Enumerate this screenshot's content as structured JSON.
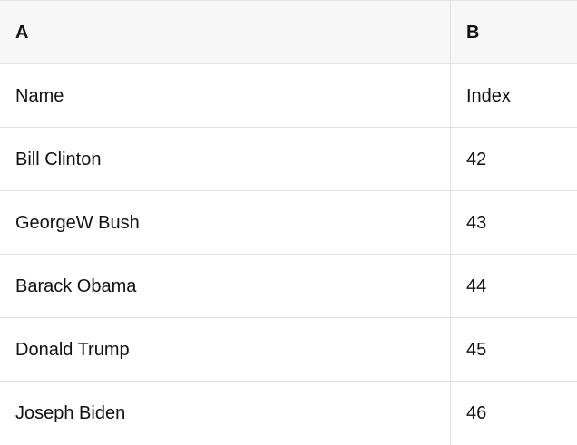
{
  "table": {
    "columns": {
      "a": "A",
      "b": "B"
    },
    "rows": [
      {
        "a": "Name",
        "b": "Index"
      },
      {
        "a": "Bill Clinton",
        "b": "42"
      },
      {
        "a": "GeorgeW Bush",
        "b": "43"
      },
      {
        "a": "Barack Obama",
        "b": "44"
      },
      {
        "a": "Donald Trump",
        "b": "45"
      },
      {
        "a": "Joseph Biden",
        "b": "46"
      }
    ],
    "colors": {
      "header_bg": "#f7f7f7",
      "border": "#e2e2e2",
      "text": "#111111",
      "row_bg": "#ffffff"
    }
  }
}
